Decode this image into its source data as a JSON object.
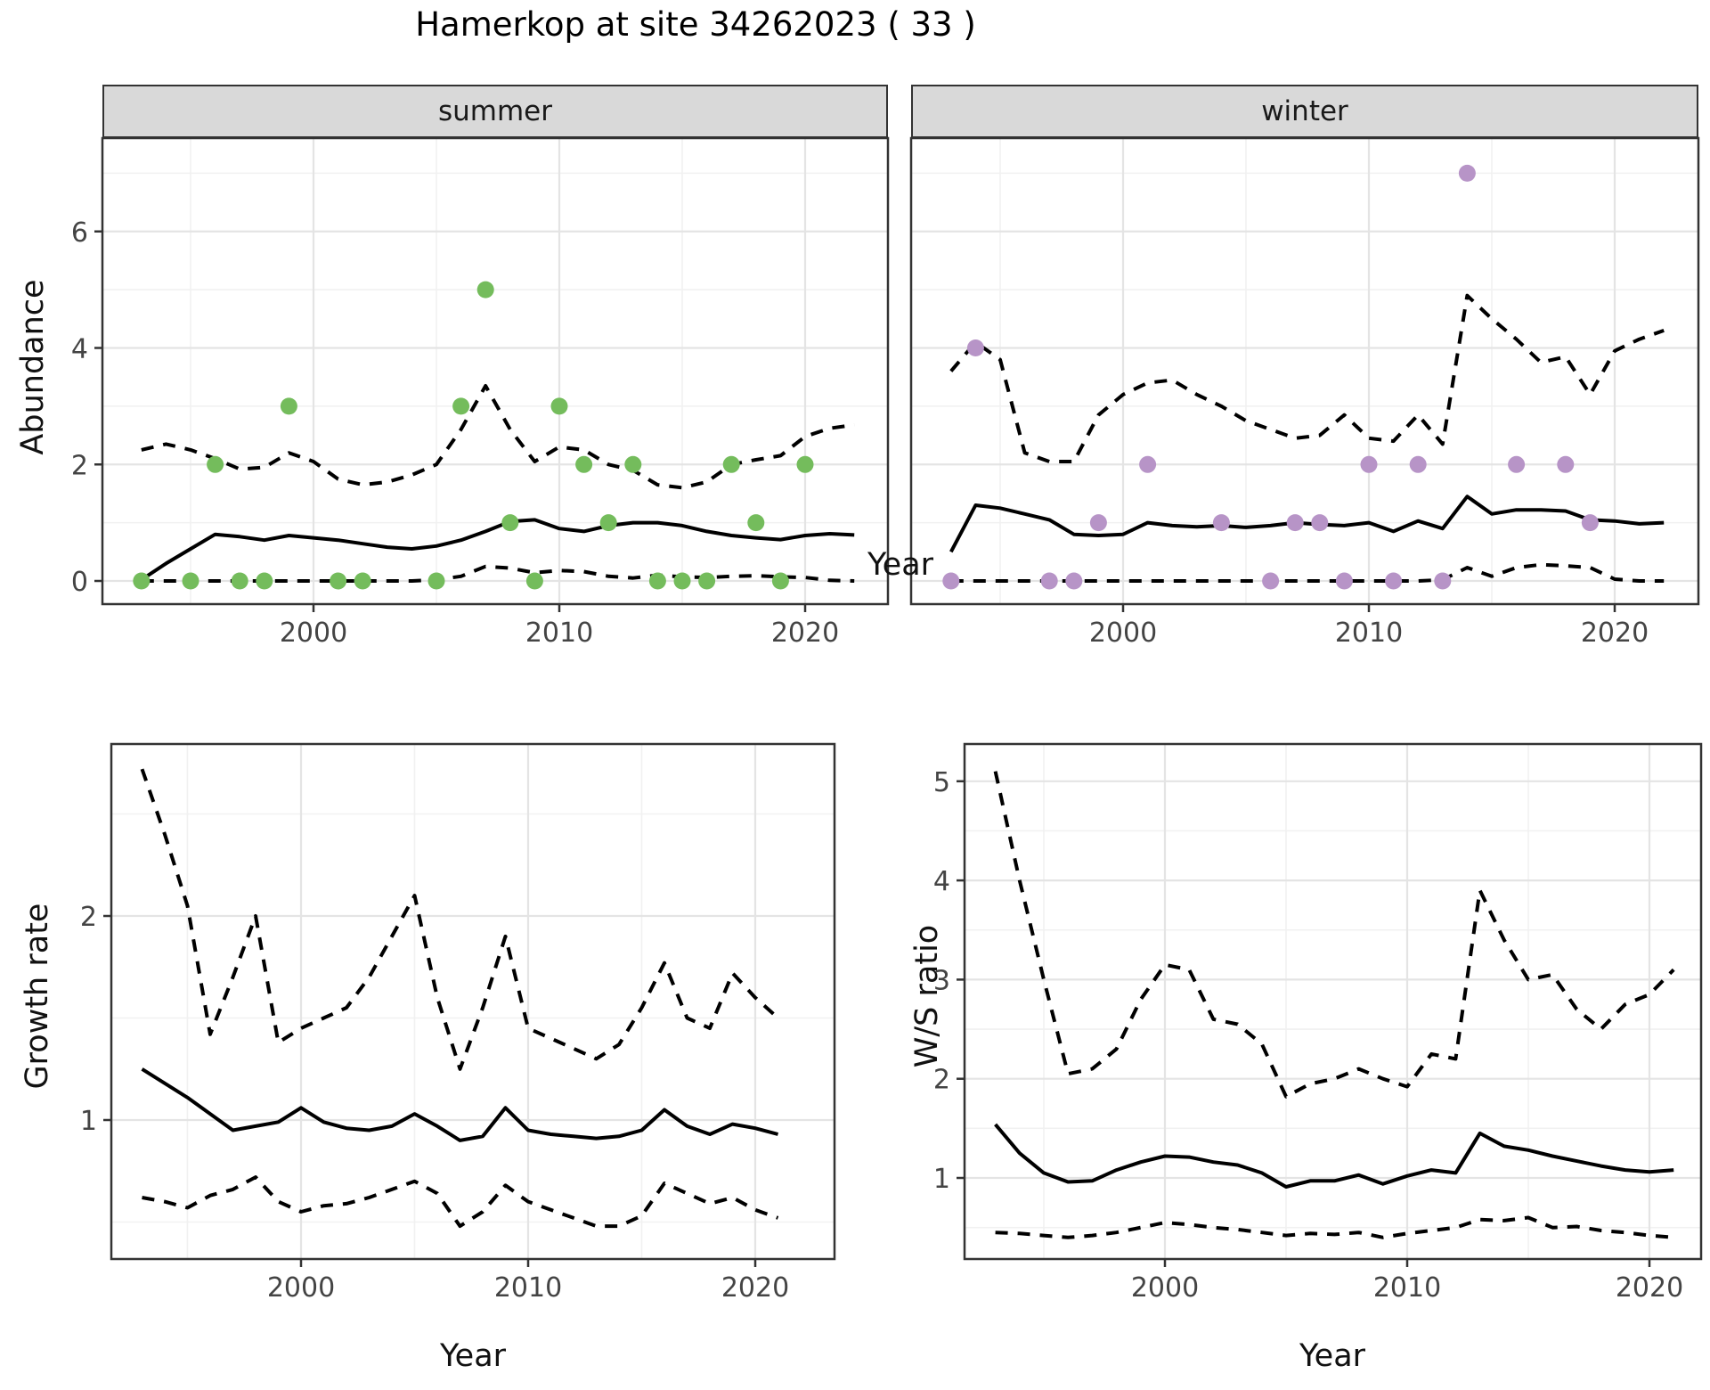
{
  "title": "Hamerkop at site 34262023 ( 33 )",
  "axes": {
    "x_label": "Year",
    "abundance_label": "Abundance",
    "growth_label": "Growth rate",
    "ws_label": "W/S ratio"
  },
  "colors": {
    "summer_point": "#74BC5C",
    "winter_point": "#B794C7",
    "line": "#000000",
    "strip_bg": "#D9D9D9",
    "panel_border": "#333333",
    "grid_major": "#E4E4E4",
    "grid_minor": "#F1F1F1",
    "tick_mark": "#333333",
    "tick_text": "#444444"
  },
  "chart_data": [
    {
      "id": "abundance_summer",
      "type": "line",
      "facet": "summer",
      "xlabel": "Year",
      "ylabel": "Abundance",
      "xlim": [
        1991.4,
        2023.4
      ],
      "ylim": [
        -0.4,
        7.6
      ],
      "x_ticks": [
        2000,
        2010,
        2020
      ],
      "x_minor": [
        1995,
        2005,
        2015
      ],
      "y_ticks": [
        0,
        2,
        4,
        6
      ],
      "y_minor": [
        1,
        3,
        5,
        7
      ],
      "years": [
        1993,
        1994,
        1995,
        1996,
        1997,
        1998,
        1999,
        2000,
        2001,
        2002,
        2003,
        2004,
        2005,
        2006,
        2007,
        2008,
        2009,
        2010,
        2011,
        2012,
        2013,
        2014,
        2015,
        2016,
        2017,
        2018,
        2019,
        2020,
        2021,
        2022
      ],
      "series": [
        {
          "name": "mean",
          "style": "solid",
          "values": [
            0.02,
            0.3,
            0.55,
            0.8,
            0.76,
            0.7,
            0.78,
            0.74,
            0.7,
            0.64,
            0.58,
            0.55,
            0.6,
            0.7,
            0.85,
            1.02,
            1.05,
            0.9,
            0.85,
            0.95,
            1.0,
            1.0,
            0.95,
            0.85,
            0.78,
            0.74,
            0.71,
            0.78,
            0.81,
            0.79
          ]
        },
        {
          "name": "upper_ci",
          "style": "dashed",
          "values": [
            2.25,
            2.35,
            2.25,
            2.1,
            1.92,
            1.95,
            2.2,
            2.05,
            1.75,
            1.65,
            1.7,
            1.82,
            2.0,
            2.6,
            3.35,
            2.6,
            2.05,
            2.3,
            2.25,
            2.0,
            1.9,
            1.65,
            1.6,
            1.7,
            2.0,
            2.08,
            2.15,
            2.48,
            2.62,
            2.68
          ]
        },
        {
          "name": "lower_ci",
          "style": "dashed",
          "values": [
            0,
            0,
            0,
            0,
            0,
            0,
            0,
            0,
            0,
            0,
            0,
            0,
            0.02,
            0.08,
            0.25,
            0.22,
            0.14,
            0.18,
            0.16,
            0.08,
            0.05,
            0.1,
            0.07,
            0.06,
            0.08,
            0.09,
            0.07,
            0.06,
            0.01,
            0
          ]
        }
      ],
      "points": {
        "color": "#74BC5C",
        "years": [
          1993,
          1995,
          1996,
          1997,
          1998,
          1999,
          2001,
          2002,
          2005,
          2006,
          2007,
          2008,
          2009,
          2010,
          2011,
          2012,
          2013,
          2014,
          2015,
          2016,
          2017,
          2018,
          2019,
          2020
        ],
        "values": [
          0,
          0,
          2,
          0,
          0,
          3,
          0,
          0,
          0,
          3,
          5,
          1,
          0,
          3,
          2,
          1,
          2,
          0,
          0,
          0,
          2,
          1,
          0,
          2
        ]
      }
    },
    {
      "id": "abundance_winter",
      "type": "line",
      "facet": "winter",
      "xlabel": "Year",
      "ylabel": "Abundance",
      "xlim": [
        1991.4,
        2023.4
      ],
      "ylim": [
        -0.4,
        7.6
      ],
      "x_ticks": [
        2000,
        2010,
        2020
      ],
      "x_minor": [
        1995,
        2005,
        2015
      ],
      "y_ticks": [
        0,
        2,
        4,
        6
      ],
      "y_minor": [
        1,
        3,
        5,
        7
      ],
      "years": [
        1993,
        1994,
        1995,
        1996,
        1997,
        1998,
        1999,
        2000,
        2001,
        2002,
        2003,
        2004,
        2005,
        2006,
        2007,
        2008,
        2009,
        2010,
        2011,
        2012,
        2013,
        2014,
        2015,
        2016,
        2017,
        2018,
        2019,
        2020,
        2021,
        2022
      ],
      "series": [
        {
          "name": "mean",
          "style": "solid",
          "values": [
            0.5,
            1.3,
            1.25,
            1.15,
            1.05,
            0.8,
            0.78,
            0.8,
            1.0,
            0.95,
            0.93,
            0.95,
            0.92,
            0.95,
            1.0,
            0.97,
            0.95,
            1.0,
            0.85,
            1.03,
            0.9,
            1.45,
            1.15,
            1.22,
            1.22,
            1.2,
            1.05,
            1.03,
            0.98,
            1.0
          ]
        },
        {
          "name": "upper_ci",
          "style": "dashed",
          "values": [
            3.6,
            4.1,
            3.8,
            2.2,
            2.05,
            2.05,
            2.85,
            3.2,
            3.4,
            3.45,
            3.2,
            3.0,
            2.75,
            2.6,
            2.45,
            2.5,
            2.85,
            2.45,
            2.4,
            2.85,
            2.35,
            4.9,
            4.5,
            4.15,
            3.75,
            3.85,
            3.2,
            3.95,
            4.15,
            4.3
          ]
        },
        {
          "name": "lower_ci",
          "style": "dashed",
          "values": [
            0,
            0,
            0,
            0,
            0,
            0,
            0,
            0,
            0,
            0,
            0,
            0,
            0,
            0,
            0,
            0,
            0,
            0,
            0,
            0,
            0.02,
            0.23,
            0.08,
            0.23,
            0.28,
            0.26,
            0.23,
            0.03,
            0,
            0
          ]
        }
      ],
      "points": {
        "color": "#B794C7",
        "years": [
          1993,
          1994,
          1997,
          1998,
          1999,
          2001,
          2004,
          2006,
          2007,
          2008,
          2009,
          2010,
          2011,
          2012,
          2013,
          2014,
          2016,
          2018,
          2019
        ],
        "values": [
          0,
          4,
          0,
          0,
          1,
          2,
          1,
          0,
          1,
          1,
          0,
          2,
          0,
          2,
          0,
          7,
          2,
          2,
          1
        ]
      }
    },
    {
      "id": "growth_rate",
      "type": "line",
      "facet": "",
      "xlabel": "Year",
      "ylabel": "Growth rate",
      "xlim": [
        1991.6,
        2023.5
      ],
      "ylim": [
        0.32,
        2.84
      ],
      "x_ticks": [
        2000,
        2010,
        2020
      ],
      "x_minor": [
        1995,
        2005,
        2015
      ],
      "y_ticks": [
        1,
        2
      ],
      "y_minor": [
        0.5,
        1.5,
        2.5
      ],
      "years": [
        1993,
        1994,
        1995,
        1996,
        1997,
        1998,
        1999,
        2000,
        2001,
        2002,
        2003,
        2004,
        2005,
        2006,
        2007,
        2008,
        2009,
        2010,
        2011,
        2012,
        2013,
        2014,
        2015,
        2016,
        2017,
        2018,
        2019,
        2020,
        2021
      ],
      "series": [
        {
          "name": "mean",
          "style": "solid",
          "values": [
            1.25,
            1.18,
            1.11,
            1.03,
            0.95,
            0.97,
            0.99,
            1.06,
            0.99,
            0.96,
            0.95,
            0.97,
            1.03,
            0.97,
            0.9,
            0.92,
            1.06,
            0.95,
            0.93,
            0.92,
            0.91,
            0.92,
            0.95,
            1.05,
            0.97,
            0.93,
            0.98,
            0.96,
            0.93
          ]
        },
        {
          "name": "upper_ci",
          "style": "dashed",
          "values": [
            2.72,
            2.4,
            2.05,
            1.42,
            1.7,
            2.0,
            1.38,
            1.45,
            1.5,
            1.55,
            1.7,
            1.9,
            2.1,
            1.6,
            1.25,
            1.55,
            1.9,
            1.45,
            1.4,
            1.35,
            1.3,
            1.37,
            1.55,
            1.77,
            1.5,
            1.45,
            1.72,
            1.6,
            1.5
          ]
        },
        {
          "name": "lower_ci",
          "style": "dashed",
          "values": [
            0.62,
            0.6,
            0.57,
            0.63,
            0.66,
            0.72,
            0.6,
            0.55,
            0.58,
            0.59,
            0.62,
            0.66,
            0.7,
            0.64,
            0.48,
            0.55,
            0.68,
            0.6,
            0.56,
            0.52,
            0.48,
            0.48,
            0.53,
            0.69,
            0.64,
            0.59,
            0.62,
            0.56,
            0.52
          ]
        }
      ],
      "points": null
    },
    {
      "id": "ws_ratio",
      "type": "line",
      "facet": "",
      "xlabel": "Year",
      "ylabel": "W/S ratio",
      "xlim": [
        1991.7,
        2022.1
      ],
      "ylim": [
        0.18,
        5.38
      ],
      "x_ticks": [
        2000,
        2010,
        2020
      ],
      "x_minor": [
        1995,
        2005,
        2015
      ],
      "y_ticks": [
        1,
        2,
        3,
        4,
        5
      ],
      "y_minor": [
        0.5,
        1.5,
        2.5,
        3.5,
        4.5
      ],
      "years": [
        1993,
        1994,
        1995,
        1996,
        1997,
        1998,
        1999,
        2000,
        2001,
        2002,
        2003,
        2004,
        2005,
        2006,
        2007,
        2008,
        2009,
        2010,
        2011,
        2012,
        2013,
        2014,
        2015,
        2016,
        2017,
        2018,
        2019,
        2020,
        2021
      ],
      "series": [
        {
          "name": "mean",
          "style": "solid",
          "values": [
            1.54,
            1.25,
            1.05,
            0.96,
            0.97,
            1.08,
            1.16,
            1.22,
            1.21,
            1.16,
            1.13,
            1.05,
            0.91,
            0.97,
            0.97,
            1.03,
            0.94,
            1.02,
            1.08,
            1.05,
            1.45,
            1.32,
            1.28,
            1.22,
            1.17,
            1.12,
            1.08,
            1.06,
            1.08
          ]
        },
        {
          "name": "upper_ci",
          "style": "dashed",
          "values": [
            5.1,
            4.0,
            3.0,
            2.05,
            2.1,
            2.3,
            2.8,
            3.15,
            3.1,
            2.6,
            2.55,
            2.35,
            1.82,
            1.95,
            2.0,
            2.1,
            2.0,
            1.92,
            2.25,
            2.2,
            3.9,
            3.4,
            3.0,
            3.05,
            2.7,
            2.5,
            2.75,
            2.85,
            3.1
          ]
        },
        {
          "name": "lower_ci",
          "style": "dashed",
          "values": [
            0.45,
            0.44,
            0.42,
            0.4,
            0.42,
            0.45,
            0.5,
            0.55,
            0.53,
            0.5,
            0.48,
            0.45,
            0.42,
            0.44,
            0.43,
            0.45,
            0.4,
            0.44,
            0.47,
            0.5,
            0.58,
            0.57,
            0.6,
            0.5,
            0.51,
            0.47,
            0.45,
            0.42,
            0.4
          ]
        }
      ],
      "points": null
    }
  ]
}
